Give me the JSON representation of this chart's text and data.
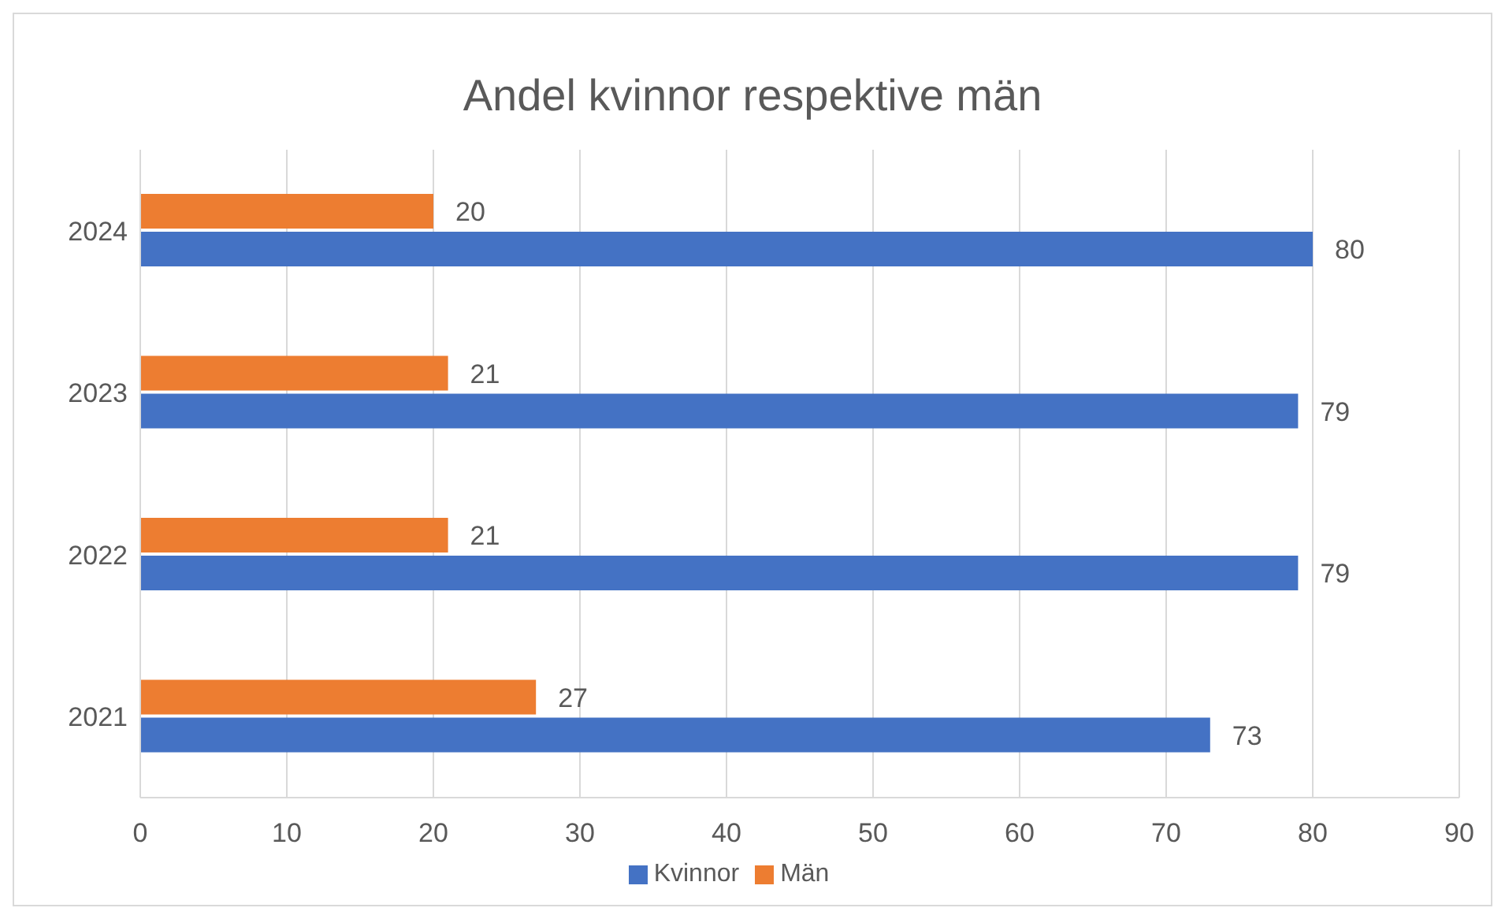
{
  "chart_data": {
    "type": "bar",
    "orientation": "horizontal",
    "title": "Andel kvinnor respektive män",
    "categories": [
      "2024",
      "2023",
      "2022",
      "2021"
    ],
    "series": [
      {
        "name": "Män",
        "color": "#ed7d31",
        "values": [
          20,
          21,
          21,
          27
        ]
      },
      {
        "name": "Kvinnor",
        "color": "#4472c4",
        "values": [
          80,
          79,
          79,
          73
        ]
      }
    ],
    "xlim": [
      0,
      90
    ],
    "xticks": [
      0,
      10,
      20,
      30,
      40,
      50,
      60,
      70,
      80,
      90
    ],
    "grid": "x",
    "legend": "bottom",
    "data_labels": true
  }
}
